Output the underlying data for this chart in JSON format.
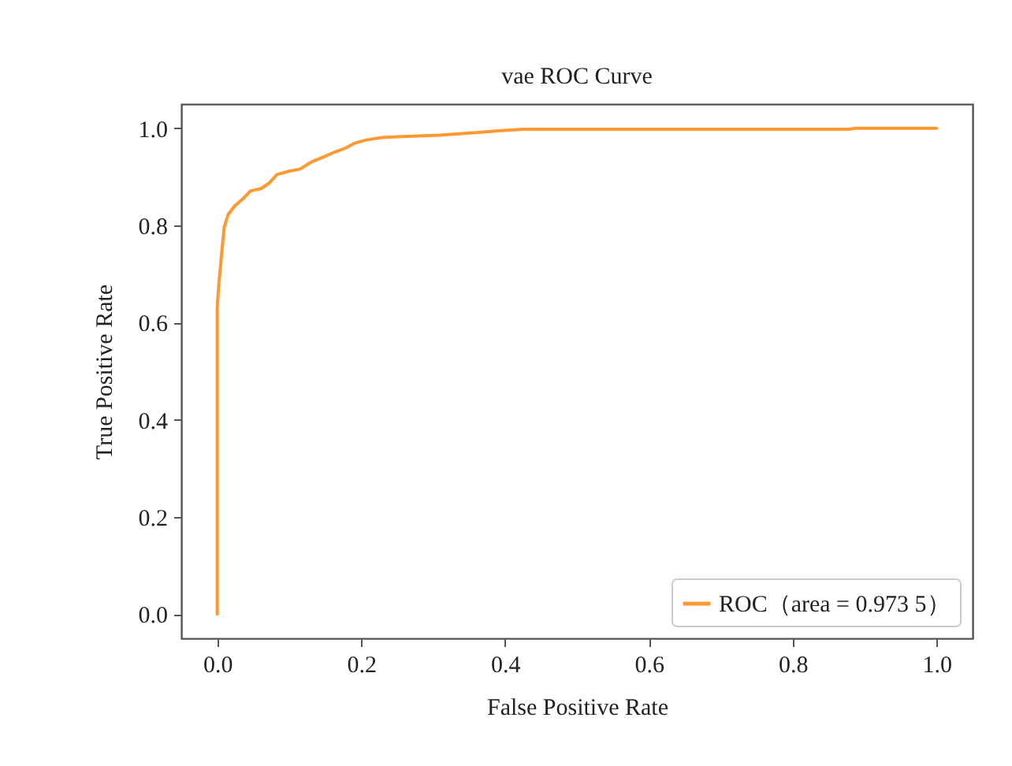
{
  "chart_data": {
    "type": "line",
    "title": "vae ROC Curve",
    "xlabel": "False Positive Rate",
    "ylabel": "True Positive Rate",
    "xlim": [
      -0.05,
      1.05
    ],
    "ylim": [
      -0.05,
      1.05
    ],
    "xticks": [
      {
        "value": 0,
        "label": "0.0"
      },
      {
        "value": 0.2,
        "label": "0.2"
      },
      {
        "value": 0.4,
        "label": "0.4"
      },
      {
        "value": 0.6,
        "label": "0.6"
      },
      {
        "value": 0.8,
        "label": "0.8"
      },
      {
        "value": 1,
        "label": "1.0"
      }
    ],
    "yticks": [
      {
        "value": 0,
        "label": "0.0"
      },
      {
        "value": 0.2,
        "label": "0.2"
      },
      {
        "value": 0.4,
        "label": "0.4"
      },
      {
        "value": 0.6,
        "label": "0.6"
      },
      {
        "value": 0.8,
        "label": "0.8"
      },
      {
        "value": 1,
        "label": "1.0"
      }
    ],
    "legend": "bottom right",
    "line_style": "solid",
    "series": [
      {
        "name": "ROC（area = 0.973 5）",
        "color": "#ff9933",
        "x": [
          0,
          0,
          0.002,
          0.006,
          0.0095,
          0.015,
          0.024,
          0.035,
          0.046,
          0.061,
          0.072,
          0.083,
          0.101,
          0.115,
          0.13,
          0.148,
          0.163,
          0.178,
          0.192,
          0.207,
          0.229,
          0.258,
          0.309,
          0.36,
          0.39,
          0.426,
          0.879,
          0.887,
          1
        ],
        "values": [
          0,
          0.633,
          0.676,
          0.741,
          0.795,
          0.822,
          0.84,
          0.854,
          0.871,
          0.876,
          0.887,
          0.905,
          0.912,
          0.916,
          0.93,
          0.941,
          0.951,
          0.959,
          0.97,
          0.976,
          0.981,
          0.983,
          0.986,
          0.991,
          0.995,
          0.998,
          0.998,
          1,
          1
        ]
      }
    ]
  }
}
